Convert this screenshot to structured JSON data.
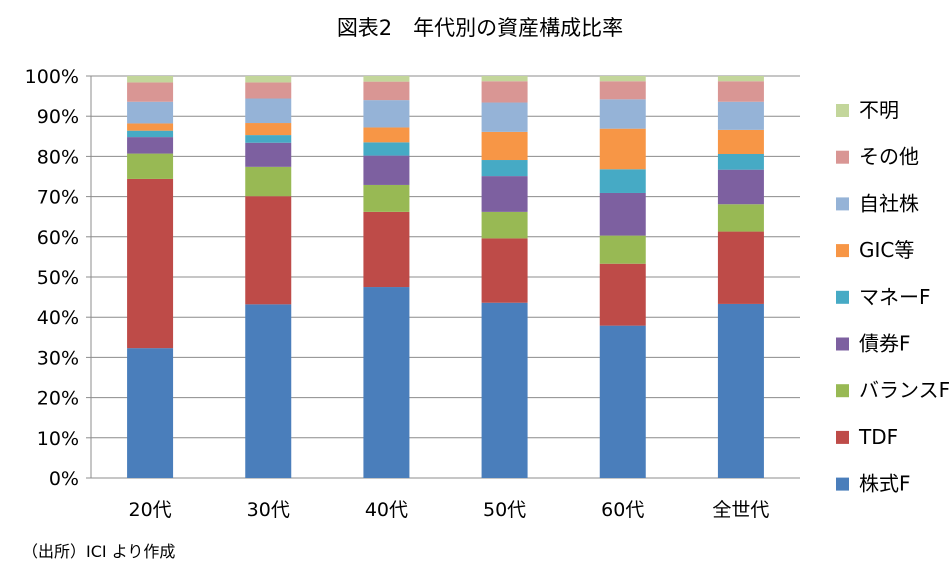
{
  "chart_data": {
    "type": "bar",
    "stacked": true,
    "title": "図表2　年代別の資産構成比率",
    "source_note": "（出所）ICI より作成",
    "categories": [
      "20代",
      "30代",
      "40代",
      "50代",
      "60代",
      "全世代"
    ],
    "y_tick_labels": [
      "0%",
      "10%",
      "20%",
      "30%",
      "40%",
      "50%",
      "60%",
      "70%",
      "80%",
      "90%",
      "100%"
    ],
    "ylim": [
      0,
      100
    ],
    "grid": true,
    "legend_position": "right",
    "legend_order": [
      "不明",
      "その他",
      "自社株",
      "GIC等",
      "マネーF",
      "債券F",
      "バランスF",
      "TDF",
      "株式F"
    ],
    "series": [
      {
        "name": "株式F",
        "color": "#4A7EBB",
        "values": [
          32.3,
          43.2,
          47.5,
          43.6,
          37.9,
          43.3
        ]
      },
      {
        "name": "TDF",
        "color": "#BE4B48",
        "values": [
          42.1,
          26.9,
          18.7,
          16.0,
          15.4,
          18.0
        ]
      },
      {
        "name": "バランスF",
        "color": "#98B954",
        "values": [
          6.3,
          7.3,
          6.7,
          6.6,
          7.0,
          6.8
        ]
      },
      {
        "name": "債券F",
        "color": "#7D60A0",
        "values": [
          4.1,
          6.0,
          7.3,
          8.9,
          10.6,
          8.6
        ]
      },
      {
        "name": "マネーF",
        "color": "#46AAC5",
        "values": [
          1.6,
          1.9,
          3.3,
          4.0,
          5.9,
          3.9
        ]
      },
      {
        "name": "GIC等",
        "color": "#F79646",
        "values": [
          1.8,
          3.0,
          3.7,
          7.0,
          10.1,
          6.0
        ]
      },
      {
        "name": "自社株",
        "color": "#95B3D7",
        "values": [
          5.4,
          6.1,
          6.8,
          7.3,
          7.3,
          7.0
        ]
      },
      {
        "name": "その他",
        "color": "#D99694",
        "values": [
          4.8,
          4.0,
          4.6,
          5.3,
          4.5,
          5.1
        ]
      },
      {
        "name": "不明",
        "color": "#C3D69B",
        "values": [
          1.6,
          1.6,
          1.4,
          1.3,
          1.3,
          1.3
        ]
      }
    ]
  }
}
